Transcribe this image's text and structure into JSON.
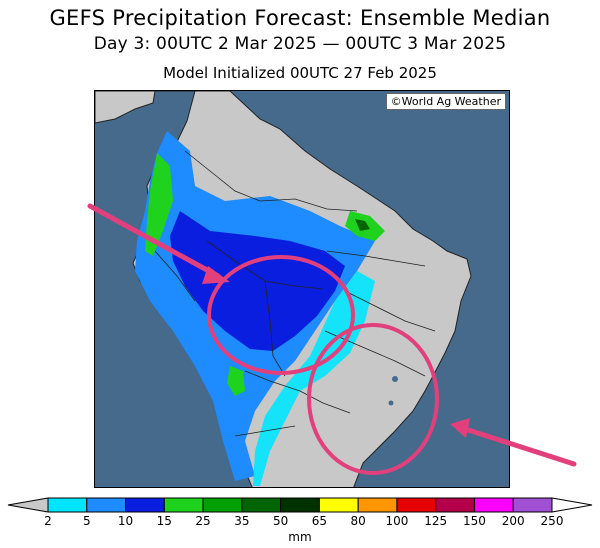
{
  "header": {
    "title": "GEFS Precipitation Forecast: Ensemble Median",
    "valid_period": "Day 3: 00UTC 2 Mar 2025 — 00UTC 3 Mar 2025",
    "init": "Model Initialized 00UTC 27 Feb 2025"
  },
  "map": {
    "credit": "©World Ag Weather",
    "colors": {
      "ocean": "#466a8c",
      "land": "#c8c8c8",
      "border": "#222222",
      "highlight": "#e2407c"
    }
  },
  "legend": {
    "units": "mm",
    "ticks": [
      "2",
      "5",
      "10",
      "15",
      "25",
      "35",
      "50",
      "65",
      "80",
      "100",
      "125",
      "150",
      "200",
      "250"
    ],
    "colors": [
      "#00e5ff",
      "#1e8cff",
      "#0a1ee0",
      "#1ed21e",
      "#00a000",
      "#006400",
      "#003200",
      "#ffff00",
      "#ff9600",
      "#e60000",
      "#b4004a",
      "#ff00ff",
      "#a050d2"
    ]
  }
}
